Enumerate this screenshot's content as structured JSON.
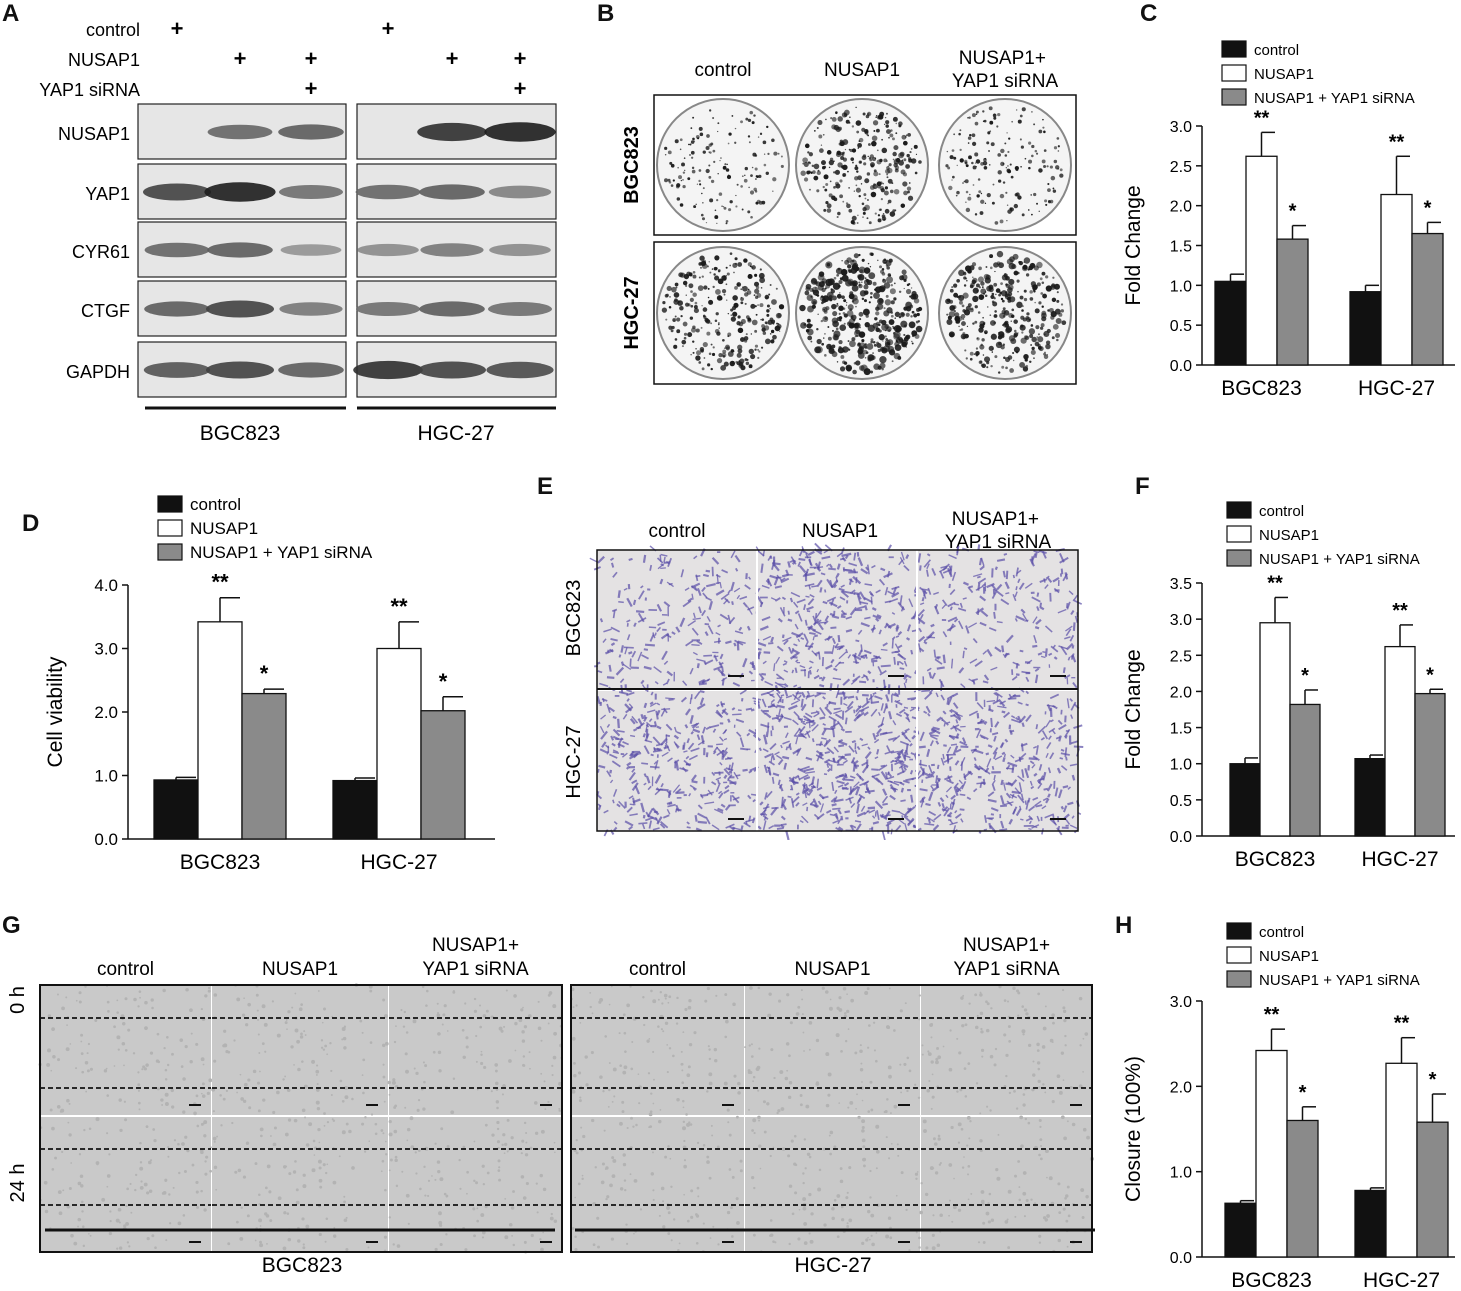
{
  "panel_letters": {
    "a": "A",
    "b": "B",
    "c": "C",
    "d": "D",
    "e": "E",
    "f": "F",
    "g": "G",
    "h": "H"
  },
  "legend_labels": [
    "control",
    "NUSAP1",
    "NUSAP1 + YAP1 siRNA"
  ],
  "series_colors": [
    "#111111",
    "#ffffff",
    "#8a8a8a"
  ],
  "western_blot": {
    "conditions": [
      {
        "label": "control",
        "marks": [
          "+",
          "",
          "",
          "+",
          "",
          ""
        ]
      },
      {
        "label": "NUSAP1",
        "marks": [
          "",
          "+",
          "+",
          "",
          "+",
          "+"
        ]
      },
      {
        "label": "YAP1 siRNA",
        "marks": [
          "",
          "",
          "+",
          "",
          "",
          "+"
        ]
      }
    ],
    "proteins": [
      "NUSAP1",
      "YAP1",
      "CYR61",
      "CTGF",
      "GAPDH"
    ],
    "band_intensity": [
      [
        0.0,
        0.55,
        0.6,
        0.0,
        0.85,
        0.95
      ],
      [
        0.75,
        0.95,
        0.5,
        0.55,
        0.6,
        0.4
      ],
      [
        0.55,
        0.6,
        0.3,
        0.35,
        0.45,
        0.35
      ],
      [
        0.6,
        0.75,
        0.45,
        0.5,
        0.6,
        0.5
      ],
      [
        0.65,
        0.75,
        0.6,
        0.85,
        0.75,
        0.7
      ]
    ],
    "cell_lines": [
      "BGC823",
      "HGC-27"
    ]
  },
  "colony_panel": {
    "columns": [
      "control",
      "NUSAP1",
      "NUSAP1+\nYAP1 siRNA"
    ],
    "rows": [
      "BGC823",
      "HGC-27"
    ],
    "colony_density": [
      [
        0.25,
        0.6,
        0.3
      ],
      [
        0.6,
        0.95,
        0.75
      ]
    ]
  },
  "transwell_panel": {
    "columns": [
      "control",
      "NUSAP1",
      "NUSAP1+\nYAP1 siRNA"
    ],
    "rows": [
      "BGC823",
      "HGC-27"
    ],
    "cell_density": [
      [
        0.3,
        0.65,
        0.35
      ],
      [
        0.6,
        0.95,
        0.7
      ]
    ],
    "stain_color": "#5b4fa8"
  },
  "wound_panel": {
    "cell_lines": [
      "BGC823",
      "HGC-27"
    ],
    "columns": [
      "control",
      "NUSAP1",
      "NUSAP1+\nYAP1 siRNA"
    ],
    "rows": [
      "0 h",
      "24 h"
    ]
  },
  "chart_data": [
    {
      "panel": "C",
      "type": "bar",
      "categories": [
        "BGC823",
        "HGC-27"
      ],
      "ylabel": "Fold Change",
      "ylim": [
        0,
        3.0
      ],
      "yticks": [
        "0.0",
        "0.5",
        "1.0",
        "1.5",
        "2.0",
        "2.5",
        "3.0"
      ],
      "series": [
        {
          "name": "control",
          "values": [
            1.05,
            0.92
          ],
          "errors": [
            0.09,
            0.08
          ],
          "sig": [
            "",
            ""
          ]
        },
        {
          "name": "NUSAP1",
          "values": [
            2.62,
            2.14
          ],
          "errors": [
            0.3,
            0.48
          ],
          "sig": [
            "**",
            "**"
          ]
        },
        {
          "name": "NUSAP1 + YAP1 siRNA",
          "values": [
            1.58,
            1.65
          ],
          "errors": [
            0.17,
            0.14
          ],
          "sig": [
            "*",
            "*"
          ]
        }
      ]
    },
    {
      "panel": "D",
      "type": "bar",
      "categories": [
        "BGC823",
        "HGC-27"
      ],
      "ylabel": "Cell viability",
      "ylim": [
        0,
        4.0
      ],
      "yticks": [
        "0.0",
        "1.0",
        "2.0",
        "3.0",
        "4.0"
      ],
      "series": [
        {
          "name": "control",
          "values": [
            0.93,
            0.92
          ],
          "errors": [
            0.04,
            0.04
          ],
          "sig": [
            "",
            ""
          ]
        },
        {
          "name": "NUSAP1",
          "values": [
            3.42,
            3.0
          ],
          "errors": [
            0.38,
            0.42
          ],
          "sig": [
            "**",
            "**"
          ]
        },
        {
          "name": "NUSAP1 + YAP1 siRNA",
          "values": [
            2.29,
            2.02
          ],
          "errors": [
            0.07,
            0.22
          ],
          "sig": [
            "*",
            "*"
          ]
        }
      ]
    },
    {
      "panel": "F",
      "type": "bar",
      "categories": [
        "BGC823",
        "HGC-27"
      ],
      "ylabel": "Fold Change",
      "ylim": [
        0,
        3.5
      ],
      "yticks": [
        "0.0",
        "0.5",
        "1.0",
        "1.5",
        "2.0",
        "2.5",
        "3.0",
        "3.5"
      ],
      "series": [
        {
          "name": "control",
          "values": [
            1.0,
            1.07
          ],
          "errors": [
            0.08,
            0.05
          ],
          "sig": [
            "",
            ""
          ]
        },
        {
          "name": "NUSAP1",
          "values": [
            2.95,
            2.62
          ],
          "errors": [
            0.35,
            0.3
          ],
          "sig": [
            "**",
            "**"
          ]
        },
        {
          "name": "NUSAP1 + YAP1 siRNA",
          "values": [
            1.82,
            1.97
          ],
          "errors": [
            0.2,
            0.06
          ],
          "sig": [
            "*",
            "*"
          ]
        }
      ]
    },
    {
      "panel": "H",
      "type": "bar",
      "categories": [
        "BGC823",
        "HGC-27"
      ],
      "ylabel": "Closure (100%)",
      "ylim": [
        0,
        3.0
      ],
      "yticks": [
        "0.0",
        "1.0",
        "2.0",
        "3.0"
      ],
      "series": [
        {
          "name": "control",
          "values": [
            0.63,
            0.78
          ],
          "errors": [
            0.03,
            0.03
          ],
          "sig": [
            "",
            ""
          ]
        },
        {
          "name": "NUSAP1",
          "values": [
            2.42,
            2.27
          ],
          "errors": [
            0.25,
            0.3
          ],
          "sig": [
            "**",
            "**"
          ]
        },
        {
          "name": "NUSAP1 + YAP1 siRNA",
          "values": [
            1.6,
            1.58
          ],
          "errors": [
            0.16,
            0.33
          ],
          "sig": [
            "*",
            "*"
          ]
        }
      ]
    }
  ]
}
